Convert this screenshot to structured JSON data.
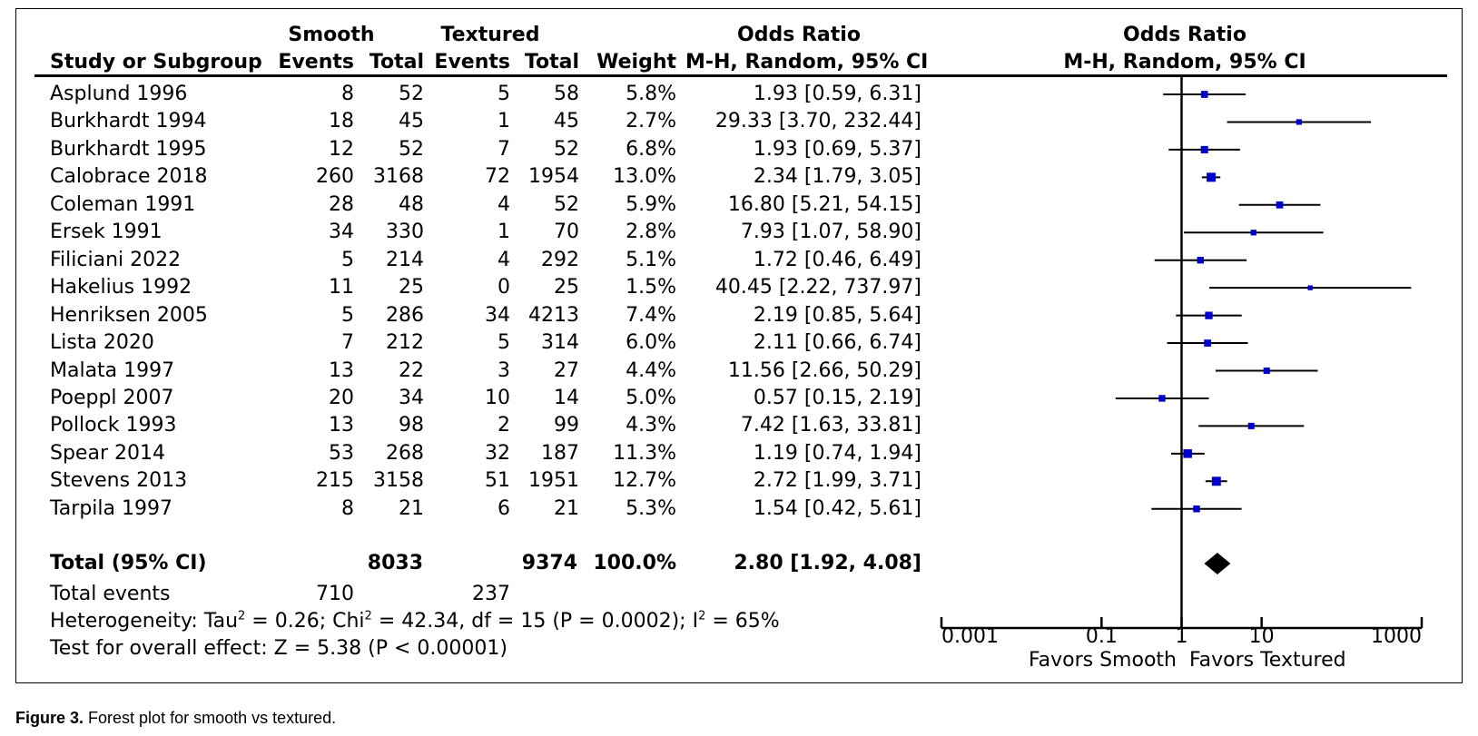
{
  "headers": {
    "study": "Study or Subgroup",
    "group1": "Smooth",
    "group2": "Textured",
    "events": "Events",
    "total": "Total",
    "weight": "Weight",
    "or_title": "Odds Ratio",
    "or_method": "M-H, Random, 95% CI",
    "plot_title": "Odds Ratio",
    "plot_method": "M-H, Random, 95% CI"
  },
  "rows": [
    {
      "study": "Asplund 1996",
      "e1": "8",
      "t1": "52",
      "e2": "5",
      "t2": "58",
      "weight": "5.8%",
      "ci": "1.93 [0.59, 6.31]"
    },
    {
      "study": "Burkhardt 1994",
      "e1": "18",
      "t1": "45",
      "e2": "1",
      "t2": "45",
      "weight": "2.7%",
      "ci": "29.33 [3.70, 232.44]"
    },
    {
      "study": "Burkhardt 1995",
      "e1": "12",
      "t1": "52",
      "e2": "7",
      "t2": "52",
      "weight": "6.8%",
      "ci": "1.93 [0.69, 5.37]"
    },
    {
      "study": "Calobrace 2018",
      "e1": "260",
      "t1": "3168",
      "e2": "72",
      "t2": "1954",
      "weight": "13.0%",
      "ci": "2.34 [1.79, 3.05]"
    },
    {
      "study": "Coleman 1991",
      "e1": "28",
      "t1": "48",
      "e2": "4",
      "t2": "52",
      "weight": "5.9%",
      "ci": "16.80 [5.21, 54.15]"
    },
    {
      "study": "Ersek 1991",
      "e1": "34",
      "t1": "330",
      "e2": "1",
      "t2": "70",
      "weight": "2.8%",
      "ci": "7.93 [1.07, 58.90]"
    },
    {
      "study": "Filiciani 2022",
      "e1": "5",
      "t1": "214",
      "e2": "4",
      "t2": "292",
      "weight": "5.1%",
      "ci": "1.72 [0.46, 6.49]"
    },
    {
      "study": "Hakelius 1992",
      "e1": "11",
      "t1": "25",
      "e2": "0",
      "t2": "25",
      "weight": "1.5%",
      "ci": "40.45 [2.22, 737.97]"
    },
    {
      "study": "Henriksen 2005",
      "e1": "5",
      "t1": "286",
      "e2": "34",
      "t2": "4213",
      "weight": "7.4%",
      "ci": "2.19 [0.85, 5.64]"
    },
    {
      "study": "Lista 2020",
      "e1": "7",
      "t1": "212",
      "e2": "5",
      "t2": "314",
      "weight": "6.0%",
      "ci": "2.11 [0.66, 6.74]"
    },
    {
      "study": "Malata 1997",
      "e1": "13",
      "t1": "22",
      "e2": "3",
      "t2": "27",
      "weight": "4.4%",
      "ci": "11.56 [2.66, 50.29]"
    },
    {
      "study": "Poeppl 2007",
      "e1": "20",
      "t1": "34",
      "e2": "10",
      "t2": "14",
      "weight": "5.0%",
      "ci": "0.57 [0.15, 2.19]"
    },
    {
      "study": "Pollock 1993",
      "e1": "13",
      "t1": "98",
      "e2": "2",
      "t2": "99",
      "weight": "4.3%",
      "ci": "7.42 [1.63, 33.81]"
    },
    {
      "study": "Spear 2014",
      "e1": "53",
      "t1": "268",
      "e2": "32",
      "t2": "187",
      "weight": "11.3%",
      "ci": "1.19 [0.74, 1.94]"
    },
    {
      "study": "Stevens 2013",
      "e1": "215",
      "t1": "3158",
      "e2": "51",
      "t2": "1951",
      "weight": "12.7%",
      "ci": "2.72 [1.99, 3.71]"
    },
    {
      "study": "Tarpila 1997",
      "e1": "8",
      "t1": "21",
      "e2": "6",
      "t2": "21",
      "weight": "5.3%",
      "ci": "1.54 [0.42, 5.61]"
    }
  ],
  "total": {
    "label": "Total (95% CI)",
    "t1": "8033",
    "t2": "9374",
    "weight": "100.0%",
    "ci": "2.80 [1.92, 4.08]"
  },
  "total_events": {
    "label": "Total events",
    "e1": "710",
    "e2": "237"
  },
  "heterogeneity": {
    "prefix": "Heterogeneity: Tau",
    "tau_val": " = 0.26; Chi",
    "chi_val": " = 42.34, df = 15 (P = 0.0002); I",
    "i_val": " = 65%",
    "sup": "2"
  },
  "overall_effect": "Test for overall effect: Z = 5.38 (P < 0.00001)",
  "axis": {
    "ticks": [
      "0.001",
      "0.1",
      "1",
      "10",
      "1000"
    ],
    "favors_left": "Favors Smooth",
    "favors_right": "Favors Textured"
  },
  "caption": {
    "label": "Figure 3.",
    "text": "Forest plot for smooth vs textured."
  },
  "colors": {
    "point": "#0000cc",
    "line": "#000000",
    "diamond": "#000000"
  },
  "chart_data": {
    "type": "forest",
    "scale": "log",
    "xlim": [
      0.001,
      1000
    ],
    "x_ticks": [
      0.001,
      0.1,
      1,
      10,
      1000
    ],
    "reference_line": 1,
    "studies": [
      {
        "name": "Asplund 1996",
        "or": 1.93,
        "lower": 0.59,
        "upper": 6.31,
        "weight": 5.8
      },
      {
        "name": "Burkhardt 1994",
        "or": 29.33,
        "lower": 3.7,
        "upper": 232.44,
        "weight": 2.7
      },
      {
        "name": "Burkhardt 1995",
        "or": 1.93,
        "lower": 0.69,
        "upper": 5.37,
        "weight": 6.8
      },
      {
        "name": "Calobrace 2018",
        "or": 2.34,
        "lower": 1.79,
        "upper": 3.05,
        "weight": 13.0
      },
      {
        "name": "Coleman 1991",
        "or": 16.8,
        "lower": 5.21,
        "upper": 54.15,
        "weight": 5.9
      },
      {
        "name": "Ersek 1991",
        "or": 7.93,
        "lower": 1.07,
        "upper": 58.9,
        "weight": 2.8
      },
      {
        "name": "Filiciani 2022",
        "or": 1.72,
        "lower": 0.46,
        "upper": 6.49,
        "weight": 5.1
      },
      {
        "name": "Hakelius 1992",
        "or": 40.45,
        "lower": 2.22,
        "upper": 737.97,
        "weight": 1.5
      },
      {
        "name": "Henriksen 2005",
        "or": 2.19,
        "lower": 0.85,
        "upper": 5.64,
        "weight": 7.4
      },
      {
        "name": "Lista 2020",
        "or": 2.11,
        "lower": 0.66,
        "upper": 6.74,
        "weight": 6.0
      },
      {
        "name": "Malata 1997",
        "or": 11.56,
        "lower": 2.66,
        "upper": 50.29,
        "weight": 4.4
      },
      {
        "name": "Poeppl 2007",
        "or": 0.57,
        "lower": 0.15,
        "upper": 2.19,
        "weight": 5.0
      },
      {
        "name": "Pollock 1993",
        "or": 7.42,
        "lower": 1.63,
        "upper": 33.81,
        "weight": 4.3
      },
      {
        "name": "Spear 2014",
        "or": 1.19,
        "lower": 0.74,
        "upper": 1.94,
        "weight": 11.3
      },
      {
        "name": "Stevens 2013",
        "or": 2.72,
        "lower": 1.99,
        "upper": 3.71,
        "weight": 12.7
      },
      {
        "name": "Tarpila 1997",
        "or": 1.54,
        "lower": 0.42,
        "upper": 5.61,
        "weight": 5.3
      }
    ],
    "pooled": {
      "or": 2.8,
      "lower": 1.92,
      "upper": 4.08
    }
  }
}
